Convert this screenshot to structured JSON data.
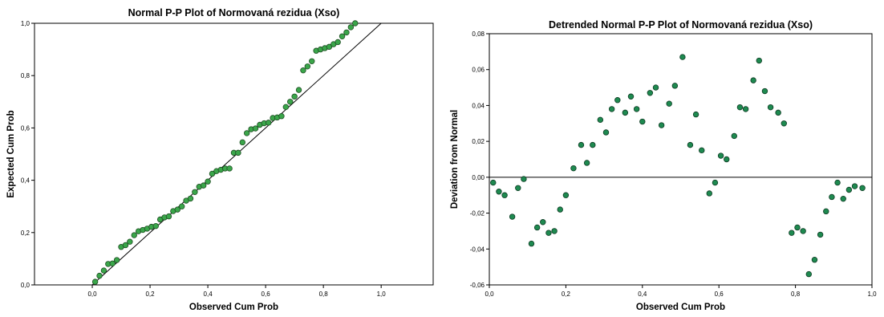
{
  "chart_data": [
    {
      "type": "scatter",
      "title": "Normal P-P Plot of Normovaná rezidua (Xso)",
      "xlabel": "Observed Cum Prob",
      "ylabel": "Expected Cum Prob",
      "xlim": [
        -0.2,
        1.18
      ],
      "ylim": [
        0,
        1.0
      ],
      "xticks": [
        "0,0",
        "0,2",
        "0,4",
        "0,6",
        "0,8",
        "1,0"
      ],
      "xtick_values": [
        0,
        0.2,
        0.4,
        0.6,
        0.8,
        1.0
      ],
      "yticks": [
        "0,0",
        "0,2",
        "0,4",
        "0,6",
        "0,8",
        "1,0"
      ],
      "ytick_values": [
        0,
        0.2,
        0.4,
        0.6,
        0.8,
        1.0
      ],
      "reference_line": {
        "from": [
          0,
          0
        ],
        "to": [
          1,
          1
        ],
        "color": "#000000"
      },
      "marker_color": "#3aa64a",
      "marker_edge": "#1e4d22",
      "points": [
        [
          0.01,
          0.012
        ],
        [
          0.025,
          0.035
        ],
        [
          0.04,
          0.055
        ],
        [
          0.055,
          0.08
        ],
        [
          0.07,
          0.082
        ],
        [
          0.085,
          0.095
        ],
        [
          0.1,
          0.145
        ],
        [
          0.115,
          0.152
        ],
        [
          0.13,
          0.165
        ],
        [
          0.145,
          0.19
        ],
        [
          0.16,
          0.205
        ],
        [
          0.175,
          0.21
        ],
        [
          0.19,
          0.215
        ],
        [
          0.205,
          0.222
        ],
        [
          0.22,
          0.225
        ],
        [
          0.235,
          0.25
        ],
        [
          0.25,
          0.258
        ],
        [
          0.265,
          0.262
        ],
        [
          0.28,
          0.282
        ],
        [
          0.295,
          0.288
        ],
        [
          0.31,
          0.3
        ],
        [
          0.325,
          0.322
        ],
        [
          0.34,
          0.33
        ],
        [
          0.355,
          0.355
        ],
        [
          0.37,
          0.375
        ],
        [
          0.385,
          0.38
        ],
        [
          0.4,
          0.395
        ],
        [
          0.415,
          0.425
        ],
        [
          0.43,
          0.435
        ],
        [
          0.445,
          0.44
        ],
        [
          0.46,
          0.445
        ],
        [
          0.475,
          0.445
        ],
        [
          0.49,
          0.505
        ],
        [
          0.505,
          0.505
        ],
        [
          0.52,
          0.545
        ],
        [
          0.535,
          0.58
        ],
        [
          0.55,
          0.595
        ],
        [
          0.565,
          0.598
        ],
        [
          0.58,
          0.612
        ],
        [
          0.595,
          0.618
        ],
        [
          0.61,
          0.62
        ],
        [
          0.625,
          0.638
        ],
        [
          0.64,
          0.64
        ],
        [
          0.655,
          0.645
        ],
        [
          0.67,
          0.68
        ],
        [
          0.685,
          0.7
        ],
        [
          0.7,
          0.72
        ],
        [
          0.715,
          0.745
        ],
        [
          0.73,
          0.82
        ],
        [
          0.745,
          0.835
        ],
        [
          0.76,
          0.855
        ],
        [
          0.775,
          0.895
        ],
        [
          0.79,
          0.9
        ],
        [
          0.805,
          0.905
        ],
        [
          0.82,
          0.91
        ],
        [
          0.835,
          0.92
        ],
        [
          0.85,
          0.928
        ],
        [
          0.865,
          0.95
        ],
        [
          0.88,
          0.965
        ],
        [
          0.895,
          0.985
        ],
        [
          0.91,
          1.0
        ]
      ]
    },
    {
      "type": "scatter",
      "title": "Detrended Normal P-P Plot of Normovaná rezidua (Xso)",
      "xlabel": "Observed Cum Prob",
      "ylabel": "Deviation from Normal",
      "xlim": [
        0.0,
        1.0
      ],
      "ylim": [
        -0.06,
        0.08
      ],
      "xticks": [
        "0,0",
        "0,2",
        "0,4",
        "0,6",
        "0,8",
        "1,0"
      ],
      "xtick_values": [
        0,
        0.2,
        0.4,
        0.6,
        0.8,
        1.0
      ],
      "yticks": [
        "-0,06",
        "-0,04",
        "-0,02",
        "0,00",
        "0,02",
        "0,04",
        "0,06",
        "0,08"
      ],
      "ytick_values": [
        -0.06,
        -0.04,
        -0.02,
        0,
        0.02,
        0.04,
        0.06,
        0.08
      ],
      "reference_line": {
        "y": 0,
        "color": "#000000"
      },
      "marker_color": "#1e8a50",
      "marker_edge": "#0d3a22",
      "points": [
        [
          0.01,
          -0.003
        ],
        [
          0.025,
          -0.008
        ],
        [
          0.04,
          -0.01
        ],
        [
          0.06,
          -0.022
        ],
        [
          0.075,
          -0.006
        ],
        [
          0.09,
          -0.001
        ],
        [
          0.11,
          -0.037
        ],
        [
          0.125,
          -0.028
        ],
        [
          0.14,
          -0.025
        ],
        [
          0.155,
          -0.031
        ],
        [
          0.17,
          -0.03
        ],
        [
          0.185,
          -0.018
        ],
        [
          0.2,
          -0.01
        ],
        [
          0.22,
          0.005
        ],
        [
          0.24,
          0.018
        ],
        [
          0.255,
          0.008
        ],
        [
          0.27,
          0.018
        ],
        [
          0.29,
          0.032
        ],
        [
          0.305,
          0.025
        ],
        [
          0.32,
          0.038
        ],
        [
          0.335,
          0.043
        ],
        [
          0.355,
          0.036
        ],
        [
          0.37,
          0.045
        ],
        [
          0.385,
          0.038
        ],
        [
          0.4,
          0.031
        ],
        [
          0.42,
          0.047
        ],
        [
          0.435,
          0.05
        ],
        [
          0.45,
          0.029
        ],
        [
          0.47,
          0.041
        ],
        [
          0.485,
          0.051
        ],
        [
          0.505,
          0.067
        ],
        [
          0.525,
          0.018
        ],
        [
          0.54,
          0.035
        ],
        [
          0.555,
          0.015
        ],
        [
          0.575,
          -0.009
        ],
        [
          0.59,
          -0.003
        ],
        [
          0.605,
          0.012
        ],
        [
          0.62,
          0.01
        ],
        [
          0.64,
          0.023
        ],
        [
          0.655,
          0.039
        ],
        [
          0.67,
          0.038
        ],
        [
          0.69,
          0.054
        ],
        [
          0.705,
          0.065
        ],
        [
          0.72,
          0.048
        ],
        [
          0.735,
          0.039
        ],
        [
          0.755,
          0.036
        ],
        [
          0.77,
          0.03
        ],
        [
          0.79,
          -0.031
        ],
        [
          0.805,
          -0.028
        ],
        [
          0.82,
          -0.03
        ],
        [
          0.835,
          -0.054
        ],
        [
          0.85,
          -0.046
        ],
        [
          0.865,
          -0.032
        ],
        [
          0.88,
          -0.019
        ],
        [
          0.895,
          -0.011
        ],
        [
          0.91,
          -0.003
        ],
        [
          0.925,
          -0.012
        ],
        [
          0.94,
          -0.007
        ],
        [
          0.955,
          -0.005
        ],
        [
          0.975,
          -0.006
        ]
      ]
    }
  ]
}
